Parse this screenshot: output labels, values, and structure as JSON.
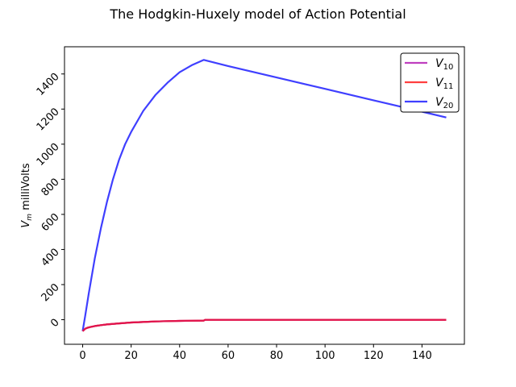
{
  "chart_data": {
    "type": "line",
    "title": "The Hodgkin-Huxely model of Action Potential",
    "xlabel": "",
    "ylabel": {
      "symbol": "V",
      "subscript": "m",
      "unit": " milliVolts"
    },
    "xlim": [
      -7.5,
      157.5
    ],
    "ylim": [
      -140,
      1555
    ],
    "xticks": [
      0,
      20,
      40,
      60,
      80,
      100,
      120,
      140
    ],
    "yticks": [
      0,
      200,
      400,
      600,
      800,
      1000,
      1200,
      1400
    ],
    "grid": false,
    "legend_position": "top-right",
    "series": [
      {
        "name": "V10",
        "label": {
          "symbol": "V",
          "subscript": "10"
        },
        "color": "#bf3fbf",
        "x": [
          0,
          1,
          2,
          3,
          5,
          7.5,
          10,
          15,
          20,
          25,
          30,
          35,
          40,
          45,
          50,
          50.5,
          60,
          80,
          100,
          120,
          140,
          150
        ],
        "y": [
          -65,
          -52,
          -46,
          -42,
          -36,
          -31,
          -27,
          -21,
          -16,
          -13,
          -10,
          -8,
          -7,
          -6,
          -5,
          -1,
          -1,
          -1,
          -1,
          -1,
          -1,
          -1
        ]
      },
      {
        "name": "V11",
        "label": {
          "symbol": "V",
          "subscript": "11"
        },
        "color": "#ff3f3f",
        "x": [
          0,
          1,
          2,
          3,
          5,
          7.5,
          10,
          15,
          20,
          25,
          30,
          35,
          40,
          45,
          50,
          50.5,
          60,
          80,
          100,
          120,
          140,
          150
        ],
        "y": [
          -65,
          -52,
          -46,
          -42,
          -36,
          -31,
          -27,
          -21,
          -16,
          -13,
          -10,
          -8,
          -7,
          -6,
          -5,
          -1,
          -1,
          -1,
          -1,
          -1,
          -1,
          -1
        ]
      },
      {
        "name": "V20",
        "label": {
          "symbol": "V",
          "subscript": "20"
        },
        "color": "#3f3fff",
        "x": [
          0,
          1,
          2.5,
          5,
          7.5,
          10,
          12.5,
          15,
          17.5,
          20,
          25,
          30,
          35,
          40,
          45,
          50,
          60,
          80,
          100,
          120,
          140,
          150
        ],
        "y": [
          -65,
          20,
          150,
          350,
          520,
          670,
          800,
          910,
          1000,
          1070,
          1190,
          1280,
          1350,
          1410,
          1450,
          1480,
          1445,
          1380,
          1315,
          1250,
          1185,
          1152
        ]
      }
    ],
    "overlay": {
      "name": "V11 overlay",
      "color": "#e0144c",
      "x": [
        0,
        1,
        2,
        3,
        5,
        7.5,
        10,
        15,
        20,
        25,
        30,
        35,
        40,
        45,
        50,
        50.5,
        60,
        80,
        100,
        120,
        140,
        150
      ],
      "y": [
        -65,
        -52,
        -46,
        -42,
        -36,
        -31,
        -27,
        -21,
        -16,
        -13,
        -10,
        -8,
        -7,
        -6,
        -5,
        -1,
        -1,
        -1,
        -1,
        -1,
        -1,
        -1
      ]
    }
  }
}
